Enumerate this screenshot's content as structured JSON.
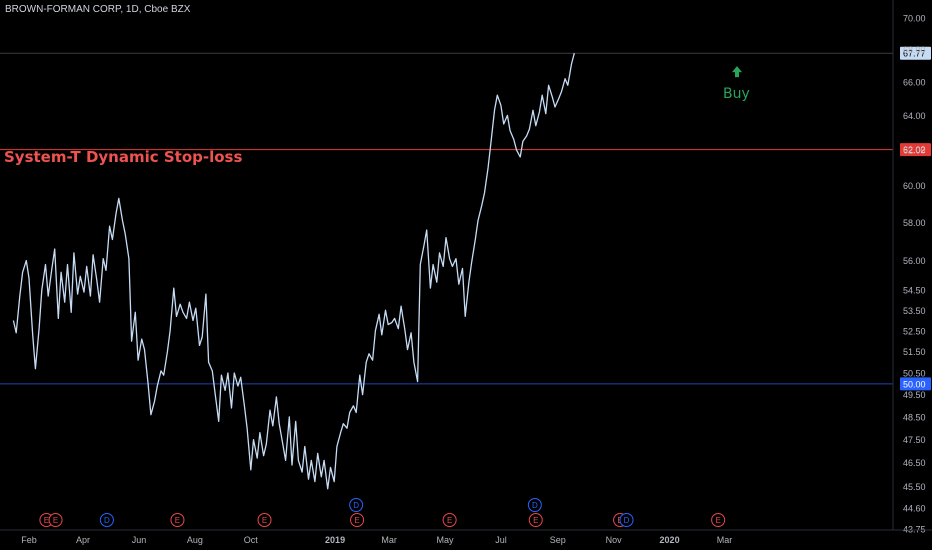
{
  "title": "BROWN-FORMAN CORP, 1D, Cboe BZX",
  "indicator_label": "System-T Dynamic Stop-loss",
  "signal_label": "Buy",
  "colors": {
    "background": "#000000",
    "price_line": "#c6dcf5",
    "stop_loss": "#e53935",
    "support": "#2962ff",
    "buy": "#26a65b",
    "axis_text": "#b2b5be",
    "event_earnings": "#e5484d",
    "event_dividend": "#2962ff"
  },
  "markers": {
    "stop_loss": {
      "value": 62.02,
      "label": "62.02"
    },
    "support": {
      "value": 50.0,
      "label": "50.00"
    },
    "last_price": {
      "value": 67.77,
      "label": "67.77"
    }
  },
  "events": [
    {
      "date": 19,
      "type": "E",
      "row": "low"
    },
    {
      "date": 29,
      "type": "E",
      "row": "low"
    },
    {
      "date": 85,
      "type": "D",
      "row": "low"
    },
    {
      "date": 162,
      "type": "E",
      "row": "low"
    },
    {
      "date": 257,
      "type": "E",
      "row": "low"
    },
    {
      "date": 357,
      "type": "D",
      "row": "high"
    },
    {
      "date": 358,
      "type": "E",
      "row": "low"
    },
    {
      "date": 459,
      "type": "E",
      "row": "low"
    },
    {
      "date": 552,
      "type": "D",
      "row": "high"
    },
    {
      "date": 553,
      "type": "E",
      "row": "low"
    },
    {
      "date": 645,
      "type": "E",
      "row": "low"
    },
    {
      "date": 652,
      "type": "D",
      "row": "low"
    },
    {
      "date": 752,
      "type": "E",
      "row": "low"
    }
  ],
  "chart_data": {
    "type": "line",
    "title": "BROWN-FORMAN CORP, 1D, Cboe BZX",
    "x_unit": "date",
    "x_ticks": [
      {
        "label": "Feb",
        "date": "2018-02-01"
      },
      {
        "label": "Apr",
        "date": "2018-04-01"
      },
      {
        "label": "Jun",
        "date": "2018-06-01"
      },
      {
        "label": "Aug",
        "date": "2018-08-01"
      },
      {
        "label": "Oct",
        "date": "2018-10-01"
      },
      {
        "label": "2019",
        "date": "2019-01-01"
      },
      {
        "label": "Mar",
        "date": "2019-03-01"
      },
      {
        "label": "May",
        "date": "2019-05-01"
      },
      {
        "label": "Jul",
        "date": "2019-07-01"
      },
      {
        "label": "Sep",
        "date": "2019-09-01"
      },
      {
        "label": "Nov",
        "date": "2019-11-01"
      },
      {
        "label": "2020",
        "date": "2020-01-01"
      },
      {
        "label": "Mar",
        "date": "2020-03-01"
      }
    ],
    "y_scale": "log",
    "y_ticks": [
      "70.00",
      "68.00",
      "66.00",
      "64.00",
      "62.00",
      "60.00",
      "58.00",
      "56.00",
      "54.50",
      "53.50",
      "52.50",
      "51.50",
      "50.50",
      "49.50",
      "48.50",
      "47.50",
      "46.50",
      "45.50",
      "44.60",
      "43.75"
    ],
    "ylim": [
      43.6,
      71.0
    ],
    "series": [
      {
        "points": [
          [
            "2018-01-15",
            53.0
          ],
          [
            "2018-01-18",
            52.4
          ],
          [
            "2018-01-22",
            54.2
          ],
          [
            "2018-01-25",
            55.4
          ],
          [
            "2018-01-29",
            56.0
          ],
          [
            "2018-02-01",
            55.1
          ],
          [
            "2018-02-05",
            52.3
          ],
          [
            "2018-02-08",
            50.7
          ],
          [
            "2018-02-12",
            52.6
          ],
          [
            "2018-02-15",
            54.5
          ],
          [
            "2018-02-19",
            55.8
          ],
          [
            "2018-02-22",
            54.2
          ],
          [
            "2018-02-26",
            55.6
          ],
          [
            "2018-03-01",
            56.6
          ],
          [
            "2018-03-05",
            53.1
          ],
          [
            "2018-03-08",
            55.4
          ],
          [
            "2018-03-12",
            53.9
          ],
          [
            "2018-03-15",
            55.8
          ],
          [
            "2018-03-19",
            53.4
          ],
          [
            "2018-03-22",
            56.4
          ],
          [
            "2018-03-26",
            54.3
          ],
          [
            "2018-03-29",
            55.2
          ],
          [
            "2018-04-02",
            54.4
          ],
          [
            "2018-04-05",
            55.7
          ],
          [
            "2018-04-09",
            54.2
          ],
          [
            "2018-04-12",
            56.3
          ],
          [
            "2018-04-16",
            55.0
          ],
          [
            "2018-04-19",
            53.9
          ],
          [
            "2018-04-23",
            56.1
          ],
          [
            "2018-04-26",
            55.5
          ],
          [
            "2018-04-30",
            57.8
          ],
          [
            "2018-05-03",
            57.1
          ],
          [
            "2018-05-07",
            58.5
          ],
          [
            "2018-05-10",
            59.3
          ],
          [
            "2018-05-14",
            58.1
          ],
          [
            "2018-05-17",
            57.4
          ],
          [
            "2018-05-21",
            56.1
          ],
          [
            "2018-05-24",
            52.0
          ],
          [
            "2018-05-28",
            53.4
          ],
          [
            "2018-05-31",
            51.1
          ],
          [
            "2018-06-04",
            52.1
          ],
          [
            "2018-06-07",
            51.6
          ],
          [
            "2018-06-11",
            50.0
          ],
          [
            "2018-06-14",
            48.6
          ],
          [
            "2018-06-18",
            49.2
          ],
          [
            "2018-06-21",
            49.9
          ],
          [
            "2018-06-25",
            50.6
          ],
          [
            "2018-06-28",
            50.4
          ],
          [
            "2018-07-02",
            51.5
          ],
          [
            "2018-07-05",
            52.5
          ],
          [
            "2018-07-09",
            54.6
          ],
          [
            "2018-07-12",
            53.2
          ],
          [
            "2018-07-16",
            53.8
          ],
          [
            "2018-07-19",
            53.4
          ],
          [
            "2018-07-23",
            53.1
          ],
          [
            "2018-07-26",
            53.9
          ],
          [
            "2018-07-30",
            53.0
          ],
          [
            "2018-08-02",
            53.6
          ],
          [
            "2018-08-06",
            51.8
          ],
          [
            "2018-08-09",
            52.2
          ],
          [
            "2018-08-13",
            54.3
          ],
          [
            "2018-08-16",
            51.0
          ],
          [
            "2018-08-20",
            50.6
          ],
          [
            "2018-08-23",
            49.6
          ],
          [
            "2018-08-27",
            48.3
          ],
          [
            "2018-08-30",
            50.4
          ],
          [
            "2018-09-03",
            49.7
          ],
          [
            "2018-09-06",
            50.5
          ],
          [
            "2018-09-10",
            48.9
          ],
          [
            "2018-09-13",
            50.5
          ],
          [
            "2018-09-17",
            49.9
          ],
          [
            "2018-09-20",
            50.3
          ],
          [
            "2018-09-24",
            49.0
          ],
          [
            "2018-09-27",
            48.0
          ],
          [
            "2018-10-01",
            46.2
          ],
          [
            "2018-10-04",
            47.5
          ],
          [
            "2018-10-08",
            46.7
          ],
          [
            "2018-10-11",
            47.8
          ],
          [
            "2018-10-15",
            46.8
          ],
          [
            "2018-10-18",
            47.3
          ],
          [
            "2018-10-22",
            48.8
          ],
          [
            "2018-10-25",
            48.1
          ],
          [
            "2018-10-29",
            49.4
          ],
          [
            "2018-11-01",
            48.2
          ],
          [
            "2018-11-05",
            47.3
          ],
          [
            "2018-11-08",
            46.6
          ],
          [
            "2018-11-12",
            48.5
          ],
          [
            "2018-11-15",
            46.4
          ],
          [
            "2018-11-19",
            48.3
          ],
          [
            "2018-11-22",
            46.6
          ],
          [
            "2018-11-26",
            46.1
          ],
          [
            "2018-11-29",
            47.2
          ],
          [
            "2018-12-03",
            45.8
          ],
          [
            "2018-12-06",
            46.6
          ],
          [
            "2018-12-10",
            45.7
          ],
          [
            "2018-12-13",
            46.9
          ],
          [
            "2018-12-17",
            45.9
          ],
          [
            "2018-12-20",
            46.6
          ],
          [
            "2018-12-24",
            45.4
          ],
          [
            "2018-12-27",
            46.3
          ],
          [
            "2018-12-31",
            45.7
          ],
          [
            "2019-01-03",
            47.2
          ],
          [
            "2019-01-07",
            47.8
          ],
          [
            "2019-01-10",
            48.2
          ],
          [
            "2019-01-14",
            48.0
          ],
          [
            "2019-01-17",
            48.7
          ],
          [
            "2019-01-21",
            49.0
          ],
          [
            "2019-01-24",
            48.7
          ],
          [
            "2019-01-28",
            50.4
          ],
          [
            "2019-01-31",
            49.5
          ],
          [
            "2019-02-04",
            51.0
          ],
          [
            "2019-02-07",
            51.4
          ],
          [
            "2019-02-11",
            51.1
          ],
          [
            "2019-02-14",
            52.5
          ],
          [
            "2019-02-18",
            53.3
          ],
          [
            "2019-02-21",
            52.3
          ],
          [
            "2019-02-25",
            53.5
          ],
          [
            "2019-02-28",
            52.8
          ],
          [
            "2019-03-04",
            52.9
          ],
          [
            "2019-03-07",
            53.1
          ],
          [
            "2019-03-11",
            52.6
          ],
          [
            "2019-03-14",
            53.7
          ],
          [
            "2019-03-18",
            52.6
          ],
          [
            "2019-03-21",
            51.6
          ],
          [
            "2019-03-25",
            52.4
          ],
          [
            "2019-03-28",
            51.0
          ],
          [
            "2019-04-01",
            50.1
          ],
          [
            "2019-04-04",
            55.8
          ],
          [
            "2019-04-08",
            56.8
          ],
          [
            "2019-04-11",
            57.6
          ],
          [
            "2019-04-15",
            54.6
          ],
          [
            "2019-04-18",
            55.8
          ],
          [
            "2019-04-22",
            54.9
          ],
          [
            "2019-04-25",
            56.4
          ],
          [
            "2019-04-29",
            55.7
          ],
          [
            "2019-05-02",
            57.2
          ],
          [
            "2019-05-06",
            56.1
          ],
          [
            "2019-05-09",
            55.7
          ],
          [
            "2019-05-13",
            56.1
          ],
          [
            "2019-05-16",
            54.8
          ],
          [
            "2019-05-20",
            55.6
          ],
          [
            "2019-05-23",
            53.2
          ],
          [
            "2019-05-27",
            54.9
          ],
          [
            "2019-05-30",
            55.9
          ],
          [
            "2019-06-03",
            57.1
          ],
          [
            "2019-06-06",
            58.1
          ],
          [
            "2019-06-10",
            58.9
          ],
          [
            "2019-06-13",
            59.6
          ],
          [
            "2019-06-17",
            61.0
          ],
          [
            "2019-06-20",
            62.4
          ],
          [
            "2019-06-24",
            64.3
          ],
          [
            "2019-06-27",
            65.2
          ],
          [
            "2019-07-01",
            64.6
          ],
          [
            "2019-07-04",
            63.5
          ],
          [
            "2019-07-08",
            64.0
          ],
          [
            "2019-07-11",
            63.1
          ],
          [
            "2019-07-15",
            62.6
          ],
          [
            "2019-07-18",
            62.0
          ],
          [
            "2019-07-22",
            61.6
          ],
          [
            "2019-07-25",
            62.5
          ],
          [
            "2019-07-29",
            62.8
          ],
          [
            "2019-08-01",
            63.2
          ],
          [
            "2019-08-05",
            64.3
          ],
          [
            "2019-08-08",
            63.4
          ],
          [
            "2019-08-12",
            64.2
          ],
          [
            "2019-08-15",
            65.2
          ],
          [
            "2019-08-19",
            64.1
          ],
          [
            "2019-08-22",
            65.8
          ],
          [
            "2019-08-26",
            65.1
          ],
          [
            "2019-08-29",
            64.5
          ],
          [
            "2019-09-02",
            65.0
          ],
          [
            "2019-09-05",
            65.4
          ],
          [
            "2019-09-09",
            66.2
          ],
          [
            "2019-09-12",
            65.8
          ],
          [
            "2019-09-16",
            67.1
          ],
          [
            "2019-09-19",
            67.77
          ]
        ]
      }
    ],
    "horizontal_lines": [
      {
        "value": 62.02,
        "label": "System-T Dynamic Stop-loss"
      },
      {
        "value": 50.0
      }
    ],
    "annotations": [
      {
        "text": "Buy",
        "date": "2019-09-16",
        "value": 66.2
      }
    ]
  }
}
